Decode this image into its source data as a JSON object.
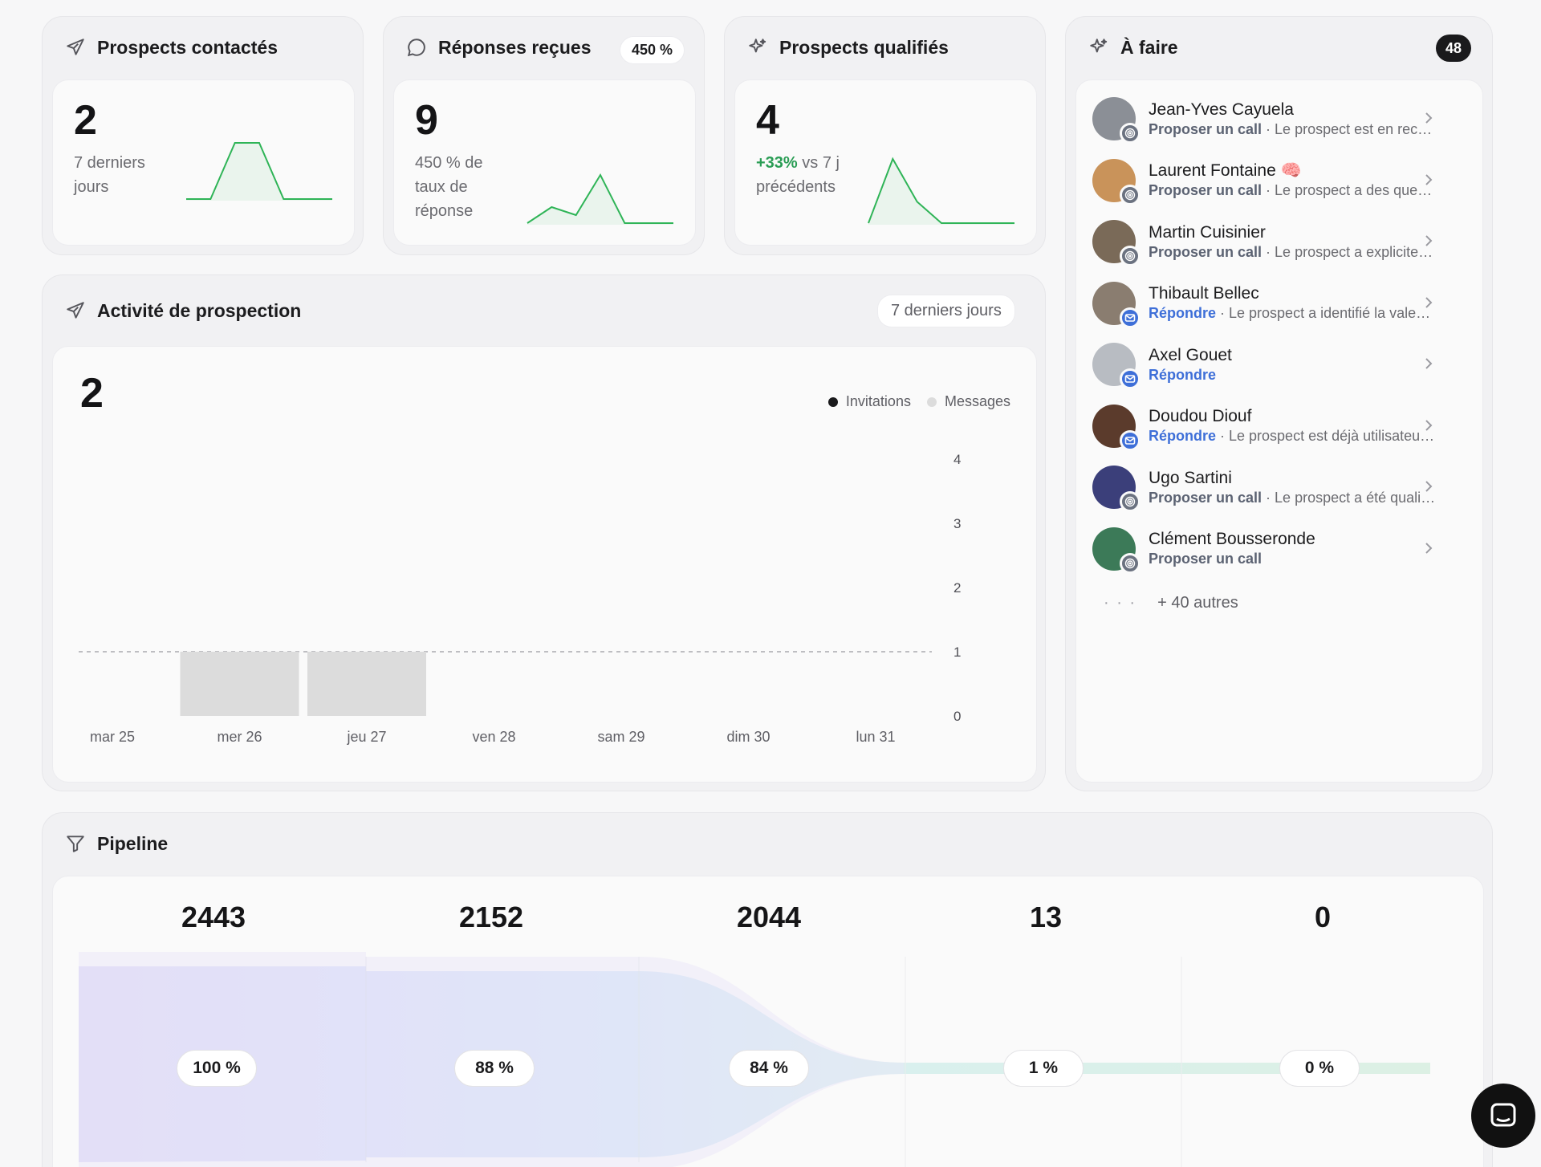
{
  "stats": {
    "contacted": {
      "title": "Prospects contactés",
      "value": "2",
      "sub": "7 derniers jours",
      "spark": [
        0,
        0,
        1,
        1,
        0,
        0,
        0
      ]
    },
    "replies": {
      "title": "Réponses reçues",
      "badge": "450 %",
      "value": "9",
      "sub": "450 % de taux de réponse",
      "spark": [
        0,
        1,
        0.5,
        3,
        0,
        0,
        0
      ]
    },
    "qualified": {
      "title": "Prospects qualifiés",
      "value": "4",
      "delta": "+33%",
      "sub": " vs 7 j précédents",
      "spark": [
        0,
        3,
        1,
        0,
        0,
        0,
        0
      ]
    }
  },
  "activity": {
    "title": "Activité de prospection",
    "period": "7 derniers jours",
    "total": "2",
    "legend": {
      "invitations": "Invitations",
      "messages": "Messages"
    }
  },
  "chart_data": {
    "type": "bar",
    "categories": [
      "mar 25",
      "mer 26",
      "jeu 27",
      "ven 28",
      "sam 29",
      "dim 30",
      "lun 31"
    ],
    "series": [
      {
        "name": "Invitations",
        "values": [
          0,
          0,
          0,
          0,
          0,
          0,
          0
        ]
      },
      {
        "name": "Messages",
        "values": [
          0,
          1,
          1,
          0,
          0,
          0,
          0
        ]
      }
    ],
    "yticks": [
      "0",
      "1",
      "2",
      "3",
      "4"
    ],
    "ylim": [
      0,
      4
    ],
    "reference_line": 1,
    "legend_position": "top-right"
  },
  "todo": {
    "title": "À faire",
    "count": "48",
    "items": [
      {
        "name": "Jean-Yves Cayuela",
        "action": "Proposer un call",
        "kind": "call",
        "detail": " · Le prospect est en recherche de solutions pour"
      },
      {
        "name": "Laurent Fontaine 🧠",
        "action": "Proposer un call",
        "kind": "call",
        "detail": " · Le prospect a des questions sur l'offre"
      },
      {
        "name": "Martin Cuisinier",
        "action": "Proposer un call",
        "kind": "call",
        "detail": " · Le prospect a explicitement demandé"
      },
      {
        "name": "Thibault Bellec",
        "action": "Répondre",
        "kind": "reply",
        "detail": " · Le prospect a identifié la valeur de"
      },
      {
        "name": "Axel Gouet",
        "action": "Répondre",
        "kind": "reply",
        "detail": ""
      },
      {
        "name": "Doudou Diouf",
        "action": "Répondre",
        "kind": "reply",
        "detail": " · Le prospect est déjà utilisateur de"
      },
      {
        "name": "Ugo Sartini",
        "action": "Proposer un call",
        "kind": "call",
        "detail": " · Le prospect a été qualifié comme"
      },
      {
        "name": "Clément Bousseronde",
        "action": "Proposer un call",
        "kind": "call",
        "detail": ""
      }
    ],
    "more_dots": "· · ·",
    "more": "+ 40 autres"
  },
  "pipeline": {
    "title": "Pipeline",
    "stages": [
      {
        "value": "2443",
        "pct": "100 %"
      },
      {
        "value": "2152",
        "pct": "88 %"
      },
      {
        "value": "2044",
        "pct": "84 %"
      },
      {
        "value": "13",
        "pct": "1 %"
      },
      {
        "value": "0",
        "pct": "0 %"
      }
    ]
  },
  "colors": {
    "spark": "#2fb457",
    "delta": "#2a9d55",
    "reply": "#3e6fd8",
    "bar": "#dcdcdc",
    "invitation_dot": "#1a1a1c",
    "message_dot": "#dcdcdc"
  },
  "icons": [
    "send-icon",
    "chat-bubble-icon",
    "sparkle-icon",
    "funnel-icon",
    "chevron-right-icon",
    "target-icon",
    "mail-icon",
    "chat-launcher-icon"
  ]
}
